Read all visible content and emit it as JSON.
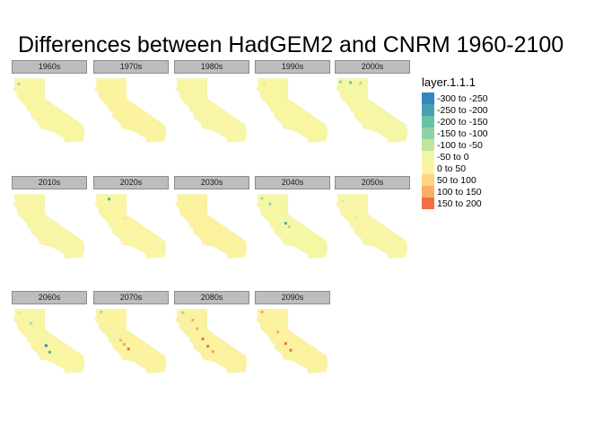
{
  "title": "Differences between HadGEM2 and CNRM 1960-2100",
  "panels": [
    {
      "label": "1960s",
      "base": "#f9f6a3",
      "spots": [
        {
          "lon": -123.6,
          "lat": 41.2,
          "c": "#a7dca5"
        }
      ]
    },
    {
      "label": "1970s",
      "base": "#fbf3a0",
      "spots": []
    },
    {
      "label": "1980s",
      "base": "#f8f6a6",
      "spots": []
    },
    {
      "label": "1990s",
      "base": "#f9f6a3",
      "spots": [
        {
          "lon": -123.3,
          "lat": 41.3,
          "c": "#d9ef9b"
        }
      ]
    },
    {
      "label": "2000s",
      "base": "#f5f7a5",
      "spots": [
        {
          "lon": -123.8,
          "lat": 41.5,
          "c": "#8fd3a4"
        },
        {
          "lon": -122.4,
          "lat": 41.4,
          "c": "#66c2a5"
        },
        {
          "lon": -121.0,
          "lat": 41.3,
          "c": "#a7dca5"
        }
      ]
    },
    {
      "label": "2010s",
      "base": "#f8f6a6",
      "spots": []
    },
    {
      "label": "2020s",
      "base": "#f9f5a3",
      "spots": [
        {
          "lon": -122.4,
          "lat": 41.3,
          "c": "#4fb0a0"
        },
        {
          "lon": -120.2,
          "lat": 38.4,
          "c": "#d9ef9b"
        }
      ]
    },
    {
      "label": "2030s",
      "base": "#fbf2a0",
      "spots": []
    },
    {
      "label": "2040s",
      "base": "#f5f7a5",
      "spots": [
        {
          "lon": -123.6,
          "lat": 41.4,
          "c": "#a7dca5"
        },
        {
          "lon": -122.5,
          "lat": 40.6,
          "c": "#8fd3a4"
        },
        {
          "lon": -120.3,
          "lat": 37.7,
          "c": "#4fb0a0"
        },
        {
          "lon": -119.8,
          "lat": 37.2,
          "c": "#a7dca5"
        }
      ]
    },
    {
      "label": "2050s",
      "base": "#f8f6a6",
      "spots": [
        {
          "lon": -123.5,
          "lat": 41.0,
          "c": "#d9ef9b"
        },
        {
          "lon": -121.6,
          "lat": 38.6,
          "c": "#d9ef9b"
        }
      ]
    },
    {
      "label": "2060s",
      "base": "#faf5a3",
      "spots": [
        {
          "lon": -123.6,
          "lat": 41.5,
          "c": "#d9ef9b"
        },
        {
          "lon": -121.9,
          "lat": 39.9,
          "c": "#a7dca5"
        },
        {
          "lon": -119.8,
          "lat": 36.6,
          "c": "#3288bd"
        },
        {
          "lon": -119.3,
          "lat": 35.6,
          "c": "#4fb0a0"
        }
      ]
    },
    {
      "label": "2070s",
      "base": "#fbf3a0",
      "spots": [
        {
          "lon": -123.5,
          "lat": 41.6,
          "c": "#a7dca5"
        },
        {
          "lon": -120.8,
          "lat": 37.4,
          "c": "#fdae61"
        },
        {
          "lon": -120.3,
          "lat": 36.8,
          "c": "#f4a460"
        },
        {
          "lon": -119.7,
          "lat": 36.1,
          "c": "#f46d43"
        }
      ]
    },
    {
      "label": "2080s",
      "base": "#fbf2a0",
      "spots": [
        {
          "lon": -123.4,
          "lat": 41.5,
          "c": "#a7dca5"
        },
        {
          "lon": -122.0,
          "lat": 40.4,
          "c": "#fdae61"
        },
        {
          "lon": -121.4,
          "lat": 39.1,
          "c": "#fdae61"
        },
        {
          "lon": -120.6,
          "lat": 37.6,
          "c": "#f46d43"
        },
        {
          "lon": -119.9,
          "lat": 36.5,
          "c": "#f46d43"
        },
        {
          "lon": -119.2,
          "lat": 35.7,
          "c": "#f4a460"
        }
      ]
    },
    {
      "label": "2090s",
      "base": "#fbf2a0",
      "spots": [
        {
          "lon": -123.6,
          "lat": 41.6,
          "c": "#f4a460"
        },
        {
          "lon": -121.4,
          "lat": 38.6,
          "c": "#fdae61"
        },
        {
          "lon": -120.3,
          "lat": 36.9,
          "c": "#f46d43"
        },
        {
          "lon": -119.6,
          "lat": 35.9,
          "c": "#f46d43"
        }
      ]
    }
  ],
  "legend": {
    "title": "layer.1.1.1",
    "items": [
      {
        "label": "-300 to -250",
        "color": "#3288bd"
      },
      {
        "label": "-250 to -200",
        "color": "#4a9fb0"
      },
      {
        "label": "-200 to -150",
        "color": "#66c2a5"
      },
      {
        "label": "-150 to -100",
        "color": "#8fd3a4"
      },
      {
        "label": "-100 to -50",
        "color": "#c2e69b"
      },
      {
        "label": "-50 to 0",
        "color": "#eef7a6"
      },
      {
        "label": "0 to 50",
        "color": "#fdf3a0"
      },
      {
        "label": "50 to 100",
        "color": "#fdd581"
      },
      {
        "label": "100 to 150",
        "color": "#fdae61"
      },
      {
        "label": "150 to 200",
        "color": "#f46d43"
      }
    ]
  }
}
